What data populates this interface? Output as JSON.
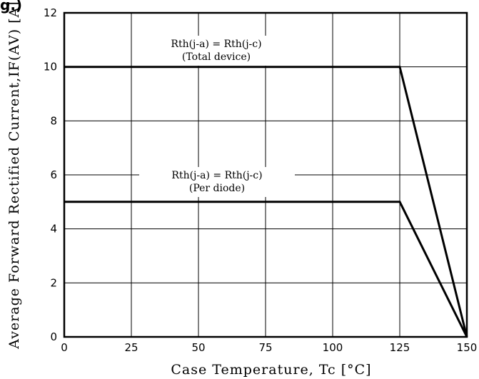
{
  "heading_fragment": "g.)",
  "chart_data": {
    "type": "line",
    "xlabel": "Case Temperature, Tc [°C]",
    "ylabel": "Average Forward Rectified Current,IF(AV) [A]",
    "xlim": [
      0,
      150
    ],
    "ylim": [
      0,
      12
    ],
    "xticks": [
      "0",
      "25",
      "50",
      "75",
      "100",
      "125",
      "150"
    ],
    "yticks": [
      "0",
      "2",
      "4",
      "6",
      "8",
      "10",
      "12"
    ],
    "grid": true,
    "series": [
      {
        "x": [
          0,
          125,
          150
        ],
        "y": [
          10,
          10,
          0
        ]
      },
      {
        "x": [
          0,
          125,
          150
        ],
        "y": [
          5,
          5,
          0
        ]
      }
    ],
    "annotations": [
      {
        "line1": "Rth(j-a) = Rth(j-c)",
        "line2": "(Total device)"
      },
      {
        "line1": "Rth(j-a) = Rth(j-c)",
        "line2": "(Per diode)"
      }
    ]
  }
}
